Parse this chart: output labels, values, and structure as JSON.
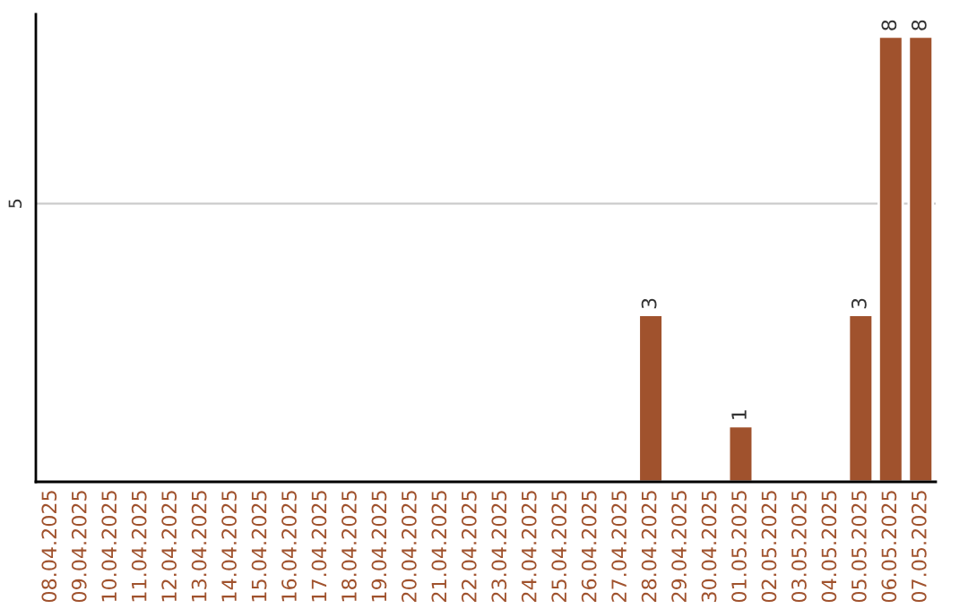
{
  "chart_data": {
    "type": "bar",
    "categories": [
      "08.04.2025",
      "09.04.2025",
      "10.04.2025",
      "11.04.2025",
      "12.04.2025",
      "13.04.2025",
      "14.04.2025",
      "15.04.2025",
      "16.04.2025",
      "17.04.2025",
      "18.04.2025",
      "19.04.2025",
      "20.04.2025",
      "21.04.2025",
      "22.04.2025",
      "23.04.2025",
      "24.04.2025",
      "25.04.2025",
      "26.04.2025",
      "27.04.2025",
      "28.04.2025",
      "29.04.2025",
      "30.04.2025",
      "01.05.2025",
      "02.05.2025",
      "03.05.2025",
      "04.05.2025",
      "05.05.2025",
      "06.05.2025",
      "07.05.2025"
    ],
    "values": [
      null,
      null,
      null,
      null,
      null,
      null,
      null,
      null,
      null,
      null,
      null,
      null,
      null,
      null,
      null,
      null,
      null,
      null,
      null,
      null,
      3,
      null,
      null,
      1,
      null,
      null,
      null,
      3,
      8,
      8
    ],
    "data_labels": true,
    "color": "#a0522d",
    "ylim": [
      0,
      8.4
    ],
    "ref_lines": [
      {
        "axis": "y",
        "value": 5,
        "label": "5",
        "color": "#cccccc",
        "line_style": "solid"
      }
    ]
  }
}
